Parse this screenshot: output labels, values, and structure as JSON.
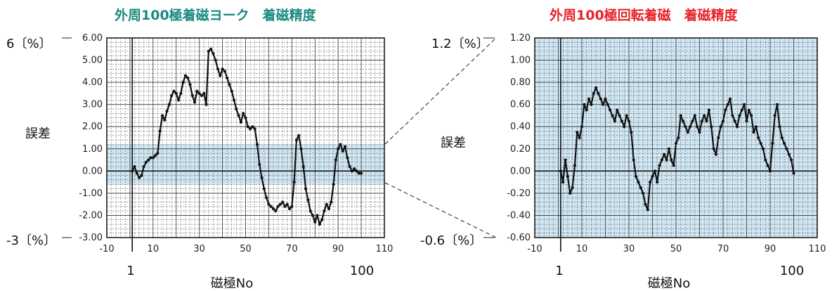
{
  "figure_texts": {
    "left_title": "外周100極着磁ヨーク　着磁精度",
    "right_title": "外周100極回転着磁　着磁精度",
    "ylabel": "誤差",
    "xlabel": "磁極No",
    "left_top_marker": "6〔%〕",
    "left_bottom_marker": "-3〔%〕",
    "right_top_marker": "1.2〔%〕",
    "right_bottom_marker": "-0.6〔%〕",
    "pole_start": "1",
    "pole_end": "100"
  },
  "colors": {
    "left_title": "#1a8a80",
    "right_title": "#e8232a",
    "band": "#cfe6f2",
    "line": "#111111"
  },
  "chart_data": [
    {
      "type": "line",
      "title": "外周100極着磁ヨーク　着磁精度",
      "ylabel": "誤差",
      "xlabel": "磁極No",
      "xlim": [
        -10,
        110
      ],
      "ylim": [
        -3.0,
        6.0
      ],
      "x_ticks": [
        "-10",
        "10",
        "30",
        "50",
        "70",
        "90",
        "110"
      ],
      "y_ticks": [
        "6.00",
        "5.00",
        "4.00",
        "3.00",
        "2.00",
        "1.00",
        "0.00",
        "-1.00",
        "-2.00",
        "-3.00"
      ],
      "highlight_band": [
        -0.6,
        1.2
      ],
      "series": [
        {
          "x": [
            1,
            2,
            3,
            4,
            5,
            6,
            7,
            8,
            9,
            10,
            11,
            12,
            13,
            14,
            15,
            16,
            17,
            18,
            19,
            20,
            21,
            22,
            23,
            24,
            25,
            26,
            27,
            28,
            29,
            30,
            31,
            32,
            33,
            34,
            35,
            36,
            37,
            38,
            39,
            40,
            41,
            42,
            43,
            44,
            45,
            46,
            47,
            48,
            49,
            50,
            51,
            52,
            53,
            54,
            55,
            56,
            57,
            58,
            59,
            60,
            61,
            62,
            63,
            64,
            65,
            66,
            67,
            68,
            69,
            70,
            71,
            72,
            73,
            74,
            75,
            76,
            77,
            78,
            79,
            80,
            81,
            82,
            83,
            84,
            85,
            86,
            87,
            88,
            89,
            90,
            91,
            92,
            93,
            94,
            95,
            96,
            97,
            98,
            99,
            100
          ],
          "values": [
            0.0,
            0.2,
            -0.1,
            -0.3,
            -0.2,
            0.2,
            0.4,
            0.5,
            0.6,
            0.6,
            0.7,
            0.8,
            1.8,
            2.5,
            2.3,
            2.7,
            3.0,
            3.4,
            3.6,
            3.5,
            3.2,
            3.5,
            4.0,
            4.3,
            4.2,
            3.9,
            3.4,
            3.1,
            3.6,
            3.5,
            3.4,
            3.5,
            3.0,
            5.4,
            5.5,
            5.3,
            5.0,
            4.6,
            4.3,
            4.6,
            4.5,
            4.2,
            3.9,
            3.6,
            3.2,
            2.8,
            2.5,
            2.2,
            2.6,
            2.4,
            2.0,
            1.9,
            2.0,
            1.9,
            1.2,
            0.3,
            -0.3,
            -0.8,
            -1.2,
            -1.5,
            -1.6,
            -1.7,
            -1.8,
            -1.6,
            -1.5,
            -1.4,
            -1.6,
            -1.5,
            -1.7,
            -1.6,
            -0.5,
            1.4,
            1.6,
            1.0,
            0.2,
            -0.8,
            -1.3,
            -1.8,
            -2.0,
            -2.3,
            -2.0,
            -2.4,
            -2.2,
            -1.8,
            -1.5,
            -1.7,
            -1.4,
            -0.6,
            0.5,
            1.0,
            1.2,
            0.9,
            1.1,
            0.6,
            0.2,
            0.0,
            0.1,
            0.0,
            -0.1,
            -0.1
          ]
        }
      ]
    },
    {
      "type": "line",
      "title": "外周100極回転着磁　着磁精度",
      "ylabel": "誤差",
      "xlabel": "磁極No",
      "xlim": [
        -10,
        110
      ],
      "ylim": [
        -0.6,
        1.2
      ],
      "x_ticks": [
        "-10",
        "10",
        "30",
        "50",
        "70",
        "90",
        "110"
      ],
      "y_ticks": [
        "1.20",
        "1.00",
        "0.80",
        "0.60",
        "0.40",
        "0.20",
        "0.00",
        "-0.20",
        "-0.40",
        "-0.60"
      ],
      "series": [
        {
          "x": [
            1,
            2,
            3,
            4,
            5,
            6,
            7,
            8,
            9,
            10,
            11,
            12,
            13,
            14,
            15,
            16,
            17,
            18,
            19,
            20,
            21,
            22,
            23,
            24,
            25,
            26,
            27,
            28,
            29,
            30,
            31,
            32,
            33,
            34,
            35,
            36,
            37,
            38,
            39,
            40,
            41,
            42,
            43,
            44,
            45,
            46,
            47,
            48,
            49,
            50,
            51,
            52,
            53,
            54,
            55,
            56,
            57,
            58,
            59,
            60,
            61,
            62,
            63,
            64,
            65,
            66,
            67,
            68,
            69,
            70,
            71,
            72,
            73,
            74,
            75,
            76,
            77,
            78,
            79,
            80,
            81,
            82,
            83,
            84,
            85,
            86,
            87,
            88,
            89,
            90,
            91,
            92,
            93,
            94,
            95,
            96,
            97,
            98,
            99,
            100
          ],
          "values": [
            0.0,
            -0.1,
            0.1,
            -0.05,
            -0.2,
            -0.15,
            0.05,
            0.35,
            0.3,
            0.4,
            0.6,
            0.55,
            0.65,
            0.6,
            0.7,
            0.75,
            0.7,
            0.65,
            0.6,
            0.65,
            0.6,
            0.55,
            0.5,
            0.45,
            0.55,
            0.5,
            0.45,
            0.4,
            0.5,
            0.45,
            0.35,
            0.1,
            -0.05,
            -0.1,
            -0.15,
            -0.2,
            -0.3,
            -0.35,
            -0.1,
            -0.05,
            0.0,
            -0.1,
            0.05,
            0.1,
            0.15,
            0.1,
            0.2,
            0.1,
            0.05,
            0.25,
            0.3,
            0.5,
            0.45,
            0.4,
            0.35,
            0.4,
            0.45,
            0.5,
            0.4,
            0.35,
            0.45,
            0.5,
            0.45,
            0.55,
            0.4,
            0.2,
            0.15,
            0.3,
            0.4,
            0.45,
            0.55,
            0.6,
            0.65,
            0.5,
            0.45,
            0.4,
            0.5,
            0.55,
            0.6,
            0.45,
            0.55,
            0.5,
            0.35,
            0.4,
            0.3,
            0.25,
            0.2,
            0.1,
            0.05,
            0.0,
            0.25,
            0.5,
            0.6,
            0.4,
            0.3,
            0.25,
            0.2,
            0.15,
            0.1,
            -0.02
          ]
        }
      ]
    }
  ]
}
